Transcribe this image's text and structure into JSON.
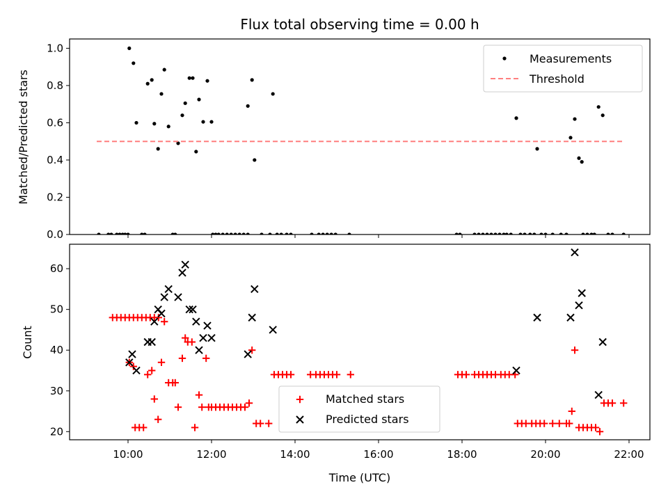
{
  "chart_data": [
    {
      "type": "scatter",
      "title": "Flux total observing time = 0.00 h",
      "xlabel": "",
      "ylabel": "Matched/Predicted stars",
      "xlim": [
        8.6,
        22.5
      ],
      "ylim": [
        0,
        1.05
      ],
      "yticks": [
        0.0,
        0.2,
        0.4,
        0.6,
        0.8,
        1.0
      ],
      "ytick_labels": [
        "0.0",
        "0.2",
        "0.4",
        "0.6",
        "0.8",
        "1.0"
      ],
      "xticks": [
        10,
        12,
        14,
        16,
        18,
        20,
        22
      ],
      "legend_position": "top-right",
      "series": [
        {
          "name": "Measurements",
          "kind": "scatter",
          "marker": "dot",
          "color": "#000000",
          "points": [
            [
              10.03,
              1.0
            ],
            [
              10.13,
              0.92
            ],
            [
              10.2,
              0.6
            ],
            [
              10.47,
              0.81
            ],
            [
              10.57,
              0.83
            ],
            [
              10.63,
              0.595
            ],
            [
              10.72,
              0.46
            ],
            [
              10.8,
              0.755
            ],
            [
              10.87,
              0.885
            ],
            [
              10.97,
              0.58
            ],
            [
              11.2,
              0.49
            ],
            [
              11.3,
              0.64
            ],
            [
              11.37,
              0.705
            ],
            [
              11.47,
              0.84
            ],
            [
              11.55,
              0.84
            ],
            [
              11.63,
              0.445
            ],
            [
              11.7,
              0.725
            ],
            [
              11.8,
              0.605
            ],
            [
              11.9,
              0.825
            ],
            [
              12.0,
              0.605
            ],
            [
              12.87,
              0.69
            ],
            [
              12.97,
              0.83
            ],
            [
              13.03,
              0.4
            ],
            [
              13.47,
              0.755
            ],
            [
              19.3,
              0.625
            ],
            [
              19.8,
              0.46
            ],
            [
              20.6,
              0.52
            ],
            [
              20.7,
              0.62
            ],
            [
              20.8,
              0.41
            ],
            [
              20.87,
              0.39
            ],
            [
              21.27,
              0.685
            ],
            [
              21.37,
              0.64
            ],
            [
              9.3,
              0.0
            ],
            [
              9.53,
              0.0
            ],
            [
              9.6,
              0.0
            ],
            [
              9.73,
              0.0
            ],
            [
              9.8,
              0.0
            ],
            [
              9.87,
              0.0
            ],
            [
              9.93,
              0.0
            ],
            [
              10.0,
              0.0
            ],
            [
              10.33,
              0.0
            ],
            [
              10.4,
              0.0
            ],
            [
              11.07,
              0.0
            ],
            [
              11.13,
              0.0
            ],
            [
              12.03,
              0.0
            ],
            [
              12.1,
              0.0
            ],
            [
              12.17,
              0.0
            ],
            [
              12.27,
              0.0
            ],
            [
              12.37,
              0.0
            ],
            [
              12.47,
              0.0
            ],
            [
              12.57,
              0.0
            ],
            [
              12.67,
              0.0
            ],
            [
              12.77,
              0.0
            ],
            [
              12.87,
              0.0
            ],
            [
              13.2,
              0.0
            ],
            [
              13.4,
              0.0
            ],
            [
              13.57,
              0.0
            ],
            [
              13.67,
              0.0
            ],
            [
              13.8,
              0.0
            ],
            [
              13.9,
              0.0
            ],
            [
              14.4,
              0.0
            ],
            [
              14.57,
              0.0
            ],
            [
              14.67,
              0.0
            ],
            [
              14.77,
              0.0
            ],
            [
              14.87,
              0.0
            ],
            [
              14.97,
              0.0
            ],
            [
              15.3,
              0.0
            ],
            [
              17.87,
              0.0
            ],
            [
              17.95,
              0.0
            ],
            [
              18.3,
              0.0
            ],
            [
              18.4,
              0.0
            ],
            [
              18.5,
              0.0
            ],
            [
              18.6,
              0.0
            ],
            [
              18.7,
              0.0
            ],
            [
              18.8,
              0.0
            ],
            [
              18.9,
              0.0
            ],
            [
              19.0,
              0.0
            ],
            [
              19.07,
              0.0
            ],
            [
              19.17,
              0.0
            ],
            [
              19.4,
              0.0
            ],
            [
              19.5,
              0.0
            ],
            [
              19.63,
              0.0
            ],
            [
              19.73,
              0.0
            ],
            [
              19.9,
              0.0
            ],
            [
              20.0,
              0.0
            ],
            [
              20.17,
              0.0
            ],
            [
              20.37,
              0.0
            ],
            [
              20.5,
              0.0
            ],
            [
              20.9,
              0.0
            ],
            [
              21.0,
              0.0
            ],
            [
              21.1,
              0.0
            ],
            [
              21.17,
              0.0
            ],
            [
              21.5,
              0.0
            ],
            [
              21.6,
              0.0
            ],
            [
              21.87,
              0.0
            ]
          ]
        },
        {
          "name": "Threshold",
          "kind": "line",
          "style": "dashed",
          "color": "#ff7f7f",
          "points": [
            [
              9.25,
              0.5
            ],
            [
              21.85,
              0.5
            ]
          ]
        }
      ]
    },
    {
      "type": "scatter",
      "title": "",
      "xlabel": "Time (UTC)",
      "ylabel": "Count",
      "xlim": [
        8.6,
        22.5
      ],
      "ylim": [
        18,
        66
      ],
      "yticks": [
        20,
        30,
        40,
        50,
        60
      ],
      "ytick_labels": [
        "20",
        "30",
        "40",
        "50",
        "60"
      ],
      "xticks": [
        10,
        12,
        14,
        16,
        18,
        20,
        22
      ],
      "xtick_labels": [
        "10:00",
        "12:00",
        "14:00",
        "16:00",
        "18:00",
        "20:00",
        "22:00"
      ],
      "legend_position": "lower-center",
      "series": [
        {
          "name": "Matched stars",
          "kind": "scatter",
          "marker": "plus",
          "color": "#ff0000",
          "points": [
            [
              9.63,
              48
            ],
            [
              9.73,
              48
            ],
            [
              9.83,
              48
            ],
            [
              9.93,
              48
            ],
            [
              10.03,
              48
            ],
            [
              10.13,
              48
            ],
            [
              10.23,
              48
            ],
            [
              10.33,
              48
            ],
            [
              10.43,
              48
            ],
            [
              10.53,
              48
            ],
            [
              10.63,
              48
            ],
            [
              10.73,
              48
            ],
            [
              10.03,
              37
            ],
            [
              10.13,
              36
            ],
            [
              10.17,
              21
            ],
            [
              10.27,
              21
            ],
            [
              10.37,
              21
            ],
            [
              10.47,
              34
            ],
            [
              10.57,
              35
            ],
            [
              10.63,
              28
            ],
            [
              10.72,
              23
            ],
            [
              10.8,
              37
            ],
            [
              10.87,
              47
            ],
            [
              10.97,
              32
            ],
            [
              11.07,
              32
            ],
            [
              11.13,
              32
            ],
            [
              11.2,
              26
            ],
            [
              11.3,
              38
            ],
            [
              11.37,
              43
            ],
            [
              11.43,
              42
            ],
            [
              11.53,
              42
            ],
            [
              11.6,
              21
            ],
            [
              11.7,
              29
            ],
            [
              11.77,
              26
            ],
            [
              11.87,
              38
            ],
            [
              11.93,
              26
            ],
            [
              12.0,
              26
            ],
            [
              12.1,
              26
            ],
            [
              12.2,
              26
            ],
            [
              12.3,
              26
            ],
            [
              12.4,
              26
            ],
            [
              12.5,
              26
            ],
            [
              12.6,
              26
            ],
            [
              12.7,
              26
            ],
            [
              12.8,
              26
            ],
            [
              12.9,
              27
            ],
            [
              12.97,
              40
            ],
            [
              13.07,
              22
            ],
            [
              13.17,
              22
            ],
            [
              13.37,
              22
            ],
            [
              13.5,
              34
            ],
            [
              13.6,
              34
            ],
            [
              13.7,
              34
            ],
            [
              13.8,
              34
            ],
            [
              13.9,
              34
            ],
            [
              14.37,
              34
            ],
            [
              14.5,
              34
            ],
            [
              14.6,
              34
            ],
            [
              14.7,
              34
            ],
            [
              14.8,
              34
            ],
            [
              14.9,
              34
            ],
            [
              15.0,
              34
            ],
            [
              15.33,
              34
            ],
            [
              17.9,
              34
            ],
            [
              18.0,
              34
            ],
            [
              18.1,
              34
            ],
            [
              18.3,
              34
            ],
            [
              18.4,
              34
            ],
            [
              18.5,
              34
            ],
            [
              18.6,
              34
            ],
            [
              18.7,
              34
            ],
            [
              18.8,
              34
            ],
            [
              18.93,
              34
            ],
            [
              19.03,
              34
            ],
            [
              19.13,
              34
            ],
            [
              19.27,
              34
            ],
            [
              19.33,
              22
            ],
            [
              19.43,
              22
            ],
            [
              19.53,
              22
            ],
            [
              19.67,
              22
            ],
            [
              19.77,
              22
            ],
            [
              19.87,
              22
            ],
            [
              19.97,
              22
            ],
            [
              20.17,
              22
            ],
            [
              20.33,
              22
            ],
            [
              20.5,
              22
            ],
            [
              20.57,
              22
            ],
            [
              20.63,
              25
            ],
            [
              20.7,
              40
            ],
            [
              20.8,
              21
            ],
            [
              20.9,
              21
            ],
            [
              21.0,
              21
            ],
            [
              21.1,
              21
            ],
            [
              21.2,
              21
            ],
            [
              21.3,
              20
            ],
            [
              21.4,
              27
            ],
            [
              21.5,
              27
            ],
            [
              21.6,
              27
            ],
            [
              21.87,
              27
            ]
          ]
        },
        {
          "name": "Predicted stars",
          "kind": "scatter",
          "marker": "x",
          "color": "#000000",
          "points": [
            [
              10.03,
              37
            ],
            [
              10.1,
              39
            ],
            [
              10.2,
              35
            ],
            [
              10.47,
              42
            ],
            [
              10.57,
              42
            ],
            [
              10.63,
              47
            ],
            [
              10.72,
              50
            ],
            [
              10.8,
              49
            ],
            [
              10.87,
              53
            ],
            [
              10.97,
              55
            ],
            [
              11.2,
              53
            ],
            [
              11.3,
              59
            ],
            [
              11.37,
              61
            ],
            [
              11.47,
              50
            ],
            [
              11.55,
              50
            ],
            [
              11.63,
              47
            ],
            [
              11.7,
              40
            ],
            [
              11.8,
              43
            ],
            [
              11.9,
              46
            ],
            [
              12.0,
              43
            ],
            [
              12.87,
              39
            ],
            [
              12.97,
              48
            ],
            [
              13.03,
              55
            ],
            [
              13.47,
              45
            ],
            [
              19.3,
              35
            ],
            [
              19.8,
              48
            ],
            [
              20.6,
              48
            ],
            [
              20.7,
              64
            ],
            [
              20.8,
              51
            ],
            [
              20.87,
              54
            ],
            [
              21.27,
              29
            ],
            [
              21.37,
              42
            ]
          ]
        }
      ]
    }
  ]
}
